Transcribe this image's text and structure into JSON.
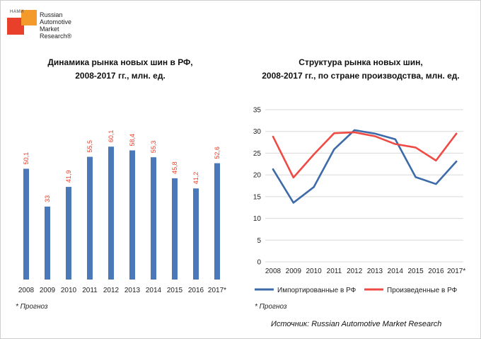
{
  "logo": {
    "small_text": "НАМИ",
    "name_lines": [
      "Russian",
      "Automotive",
      "Market",
      "Research®"
    ],
    "colors": {
      "red": "#e8402b",
      "orange": "#f39a2b"
    }
  },
  "left_title_lines": [
    "Динамика рынка новых шин в РФ,",
    "2008-2017 гг., млн. ед."
  ],
  "right_title_lines": [
    "Структура рынка новых шин,",
    "2008-2017 гг., по стране производства, млн. ед."
  ],
  "left_note": "* Прогноз",
  "right_note": "* Прогноз",
  "source": "Источник: Russian Automotive Market Research",
  "chart_data": [
    {
      "type": "bar",
      "title": "Динамика рынка новых шин в РФ, 2008-2017 гг., млн. ед.",
      "categories": [
        "2008",
        "2009",
        "2010",
        "2011",
        "2012",
        "2013",
        "2014",
        "2015",
        "2016",
        "2017*"
      ],
      "values": [
        50.1,
        33,
        41.9,
        55.5,
        60.1,
        58.4,
        55.3,
        45.8,
        41.2,
        52.6
      ],
      "data_labels": [
        "50,1",
        "33",
        "41,9",
        "55,5",
        "60,1",
        "58,4",
        "55,3",
        "45,8",
        "41,2",
        "52,6"
      ],
      "ylim": [
        0,
        80
      ],
      "bar_color": "#4a78b8",
      "label_color": "#e8402b",
      "grid": false
    },
    {
      "type": "line",
      "title": "Структура рынка новых шин, 2008-2017 гг., по стране производства, млн. ед.",
      "categories": [
        "2008",
        "2009",
        "2010",
        "2011",
        "2012",
        "2013",
        "2014",
        "2015",
        "2016",
        "2017*"
      ],
      "y_ticks": [
        "0",
        "5",
        "10",
        "15",
        "20",
        "25",
        "30",
        "35"
      ],
      "ylim": [
        0,
        35
      ],
      "grid": true,
      "legend_position": "bottom",
      "series": [
        {
          "name": "Импортированные в РФ",
          "color": "#3d6aa8",
          "values": [
            21.3,
            13.6,
            17.2,
            25.9,
            30.3,
            29.5,
            28.2,
            19.5,
            17.9,
            23.1
          ]
        },
        {
          "name": "Произведенные в РФ",
          "color": "#f04a44",
          "values": [
            28.8,
            19.4,
            24.7,
            29.6,
            29.8,
            28.9,
            27.1,
            26.3,
            23.3,
            29.5
          ]
        }
      ]
    }
  ]
}
